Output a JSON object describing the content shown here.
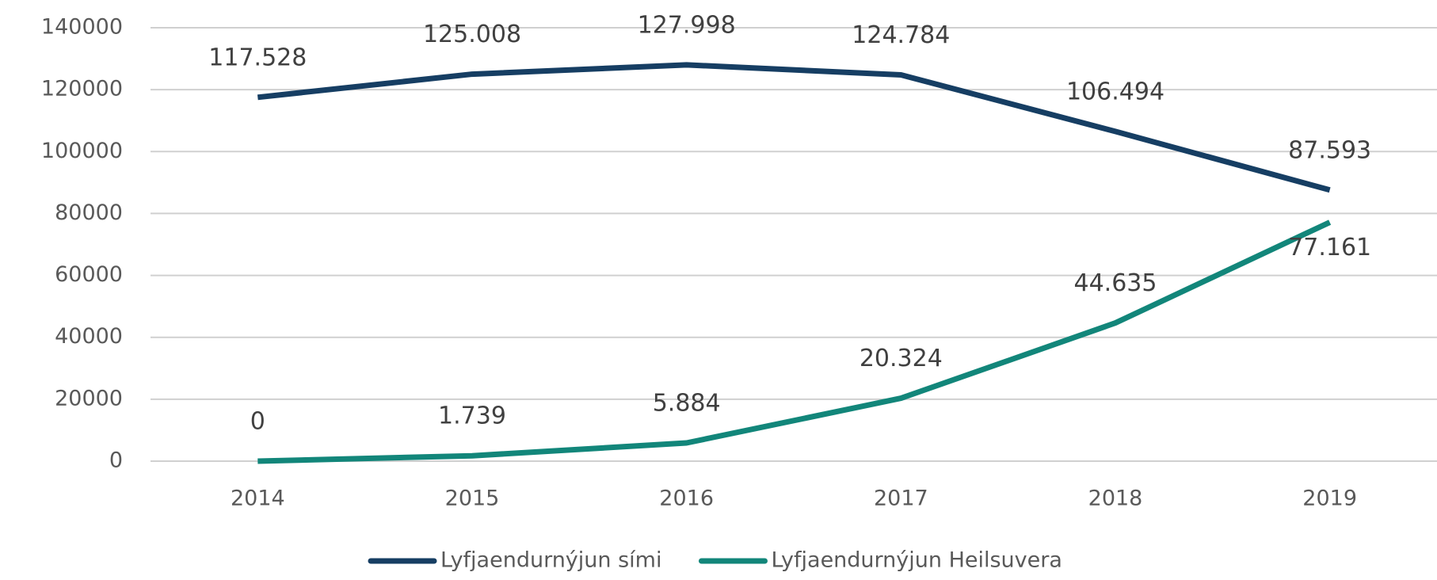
{
  "chart_data": {
    "type": "line",
    "categories": [
      "2014",
      "2015",
      "2016",
      "2017",
      "2018",
      "2019"
    ],
    "series": [
      {
        "name": "Lyfjaendurnýjun sími",
        "color": "#163e63",
        "values": [
          117528,
          125008,
          127998,
          124784,
          106494,
          87593
        ],
        "value_labels": [
          "117.528",
          "125.008",
          "127.998",
          "124.784",
          "106.494",
          "87.593"
        ]
      },
      {
        "name": "Lyfjaendurnýjun Heilsuvera",
        "color": "#12867a",
        "values": [
          0,
          1739,
          5884,
          20324,
          44635,
          77161
        ],
        "value_labels": [
          "0",
          "1.739",
          "5.884",
          "20.324",
          "44.635",
          "77.161"
        ]
      }
    ],
    "ylim": [
      0,
      140000
    ],
    "yticks": [
      0,
      20000,
      40000,
      60000,
      80000,
      100000,
      120000,
      140000
    ],
    "grid": true,
    "legend": "bottom"
  }
}
